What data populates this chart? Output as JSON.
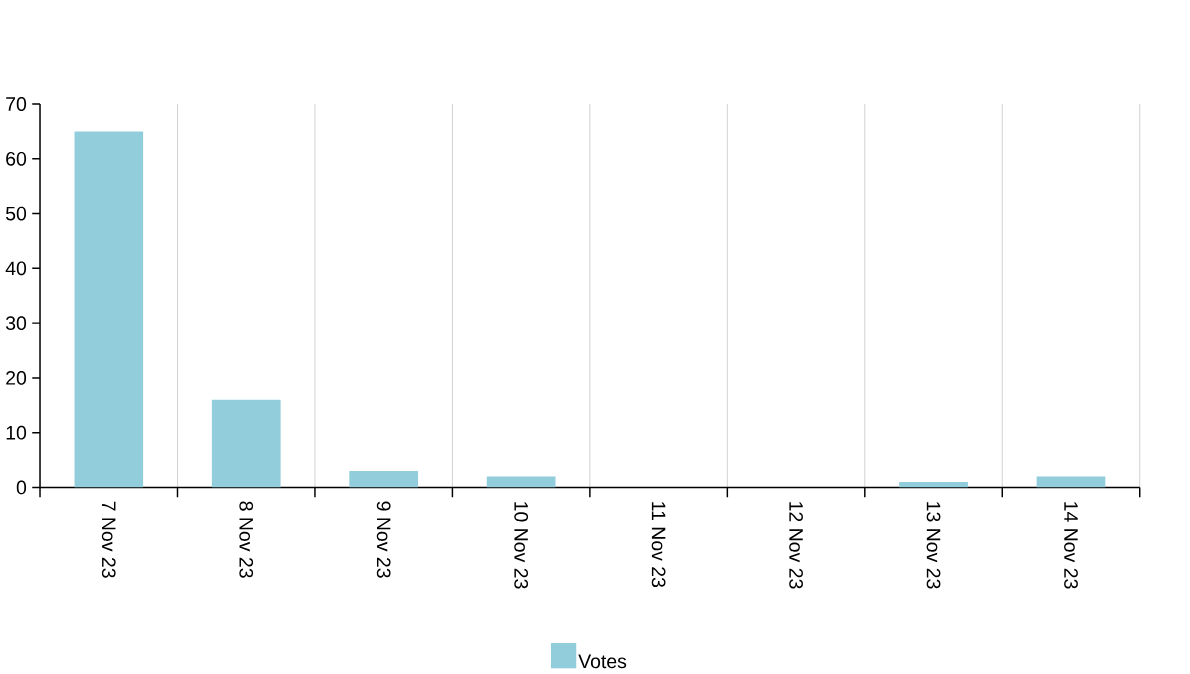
{
  "chart_data": {
    "type": "bar",
    "categories": [
      "7 Nov 23",
      "8 Nov 23",
      "9 Nov 23",
      "10 Nov 23",
      "11 Nov 23",
      "12 Nov 23",
      "13 Nov 23",
      "14 Nov 23"
    ],
    "series": [
      {
        "name": "Votes",
        "color": "#92cddb",
        "values": [
          65,
          16,
          3,
          2,
          0,
          0,
          1,
          2
        ]
      }
    ],
    "ylim": [
      0,
      70
    ],
    "yticks": [
      0,
      10,
      20,
      30,
      40,
      50,
      60,
      70
    ],
    "grid": "x",
    "legend": "bottom"
  }
}
